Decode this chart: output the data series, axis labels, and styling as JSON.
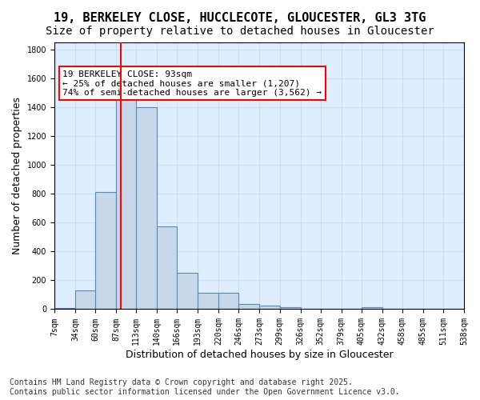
{
  "title_line1": "19, BERKELEY CLOSE, HUCCLECOTE, GLOUCESTER, GL3 3TG",
  "title_line2": "Size of property relative to detached houses in Gloucester",
  "xlabel": "Distribution of detached houses by size in Gloucester",
  "ylabel": "Number of detached properties",
  "bar_edges": [
    7,
    34,
    60,
    87,
    113,
    140,
    166,
    193,
    220,
    246,
    273,
    299,
    326,
    352,
    379,
    405,
    432,
    458,
    485,
    511,
    538
  ],
  "bar_heights": [
    10,
    130,
    810,
    1500,
    1400,
    575,
    250,
    115,
    115,
    35,
    25,
    15,
    5,
    0,
    0,
    15,
    0,
    0,
    0,
    0
  ],
  "bar_color": "#c8d8e8",
  "bar_edgecolor": "#5588bb",
  "property_line_x": 93,
  "annotation_box_text": "19 BERKELEY CLOSE: 93sqm\n← 25% of detached houses are smaller (1,207)\n74% of semi-detached houses are larger (3,562) →",
  "annotation_box_facecolor": "white",
  "annotation_box_edgecolor": "red",
  "red_line_color": "red",
  "grid_color": "#ccddee",
  "background_color": "#ddeeff",
  "tick_labels": [
    "7sqm",
    "34sqm",
    "60sqm",
    "87sqm",
    "113sqm",
    "140sqm",
    "166sqm",
    "193sqm",
    "220sqm",
    "246sqm",
    "273sqm",
    "299sqm",
    "326sqm",
    "352sqm",
    "379sqm",
    "405sqm",
    "432sqm",
    "458sqm",
    "485sqm",
    "511sqm",
    "538sqm"
  ],
  "ylim": [
    0,
    1850
  ],
  "yticks": [
    0,
    200,
    400,
    600,
    800,
    1000,
    1200,
    1400,
    1600,
    1800
  ],
  "footer_line1": "Contains HM Land Registry data © Crown copyright and database right 2025.",
  "footer_line2": "Contains public sector information licensed under the Open Government Licence v3.0.",
  "title_fontsize": 11,
  "subtitle_fontsize": 10,
  "axis_label_fontsize": 9,
  "tick_fontsize": 7,
  "annotation_fontsize": 8,
  "footer_fontsize": 7
}
